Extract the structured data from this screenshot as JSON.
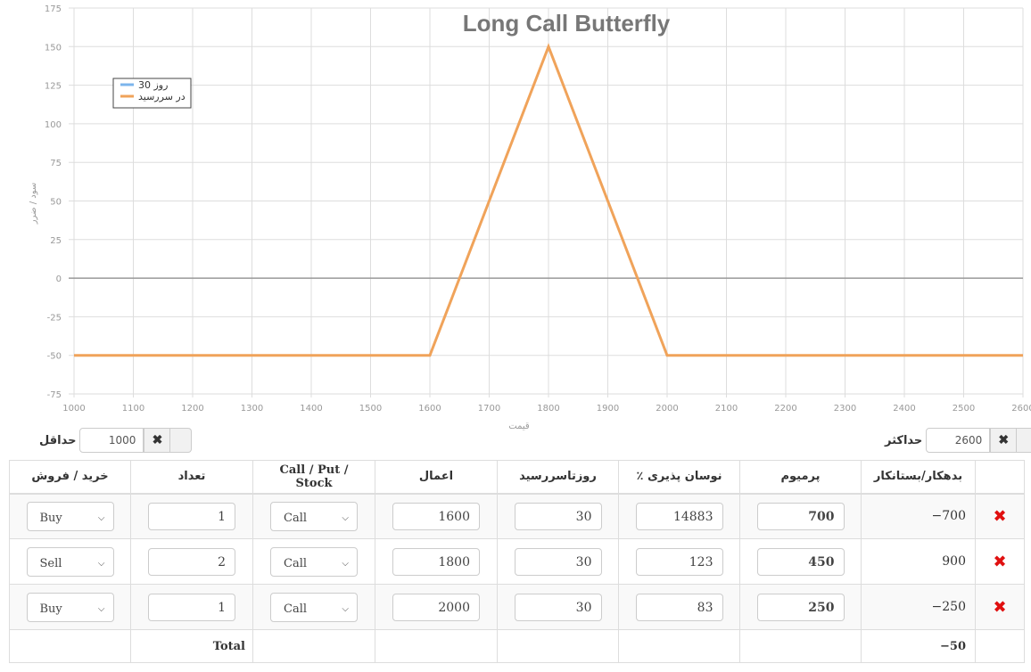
{
  "chart_data": {
    "type": "line",
    "title": "Long Call Butterfly",
    "xlabel": "قیمت",
    "ylabel": "سود / ضرر",
    "xlim": [
      1000,
      2600
    ],
    "ylim": [
      -75,
      175
    ],
    "x_ticks": [
      1000,
      1100,
      1200,
      1300,
      1400,
      1500,
      1600,
      1700,
      1800,
      1900,
      2000,
      2100,
      2200,
      2300,
      2400,
      2500,
      2600
    ],
    "y_ticks": [
      175,
      150,
      125,
      100,
      75,
      50,
      25,
      0,
      -25,
      -50,
      -75
    ],
    "grid": true,
    "legend_position": "top-left",
    "series": [
      {
        "name": "روز 30",
        "color": "#7cb5ec",
        "x": [],
        "y": []
      },
      {
        "name": "در سررسید",
        "color": "#f0a35a",
        "x": [
          1000,
          1600,
          1800,
          2000,
          2600
        ],
        "y": [
          -50,
          -50,
          150,
          -50,
          -50
        ]
      }
    ]
  },
  "range": {
    "min_label": "حداقل",
    "min_value": "1000",
    "max_label": "حداکثر",
    "max_value": "2600",
    "clear_icon": "✖"
  },
  "table": {
    "headers": {
      "side": "خرید / فروش",
      "qty": "تعداد",
      "type": "Call / Put / Stock",
      "strike": "اعمال",
      "days": "روزتاسررسید",
      "vol": "٪ نوسان پذیری",
      "premium": "پرميوم",
      "debit": "بدهکار/بستانکار"
    },
    "rows": [
      {
        "side": "Buy",
        "qty": "1",
        "type": "Call",
        "strike": "1600",
        "days": "30",
        "vol": "14883",
        "premium": "700",
        "debit": "−700"
      },
      {
        "side": "Sell",
        "qty": "2",
        "type": "Call",
        "strike": "1800",
        "days": "30",
        "vol": "123",
        "premium": "450",
        "debit": "900"
      },
      {
        "side": "Buy",
        "qty": "1",
        "type": "Call",
        "strike": "2000",
        "days": "30",
        "vol": "83",
        "premium": "250",
        "debit": "−250"
      }
    ],
    "total_label": "Total",
    "total_value": "−50",
    "delete_icon": "✖"
  }
}
